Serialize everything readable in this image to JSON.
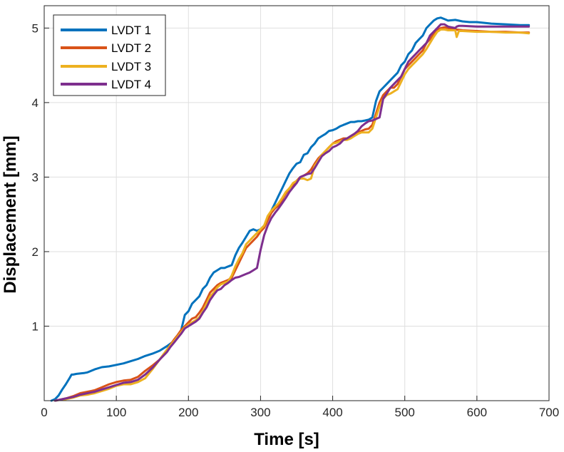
{
  "chart_data": {
    "type": "line",
    "xlabel": "Time [s]",
    "ylabel": "Displacement [mm]",
    "xlim": [
      0,
      700
    ],
    "ylim": [
      0,
      5.3
    ],
    "xticks": [
      0,
      100,
      200,
      300,
      400,
      500,
      600,
      700
    ],
    "xtick_labels": [
      "0",
      "100",
      "200",
      "300",
      "400",
      "500",
      "600",
      "700"
    ],
    "yticks": [
      1,
      2,
      3,
      4,
      5
    ],
    "ytick_labels": [
      "1",
      "2",
      "3",
      "4",
      "5"
    ],
    "grid": true,
    "legend_position": "top-left",
    "series": [
      {
        "name": "LVDT 1",
        "color": "#0072BD",
        "x": [
          10,
          15,
          20,
          25,
          30,
          35,
          38,
          40,
          45,
          55,
          60,
          70,
          80,
          90,
          100,
          110,
          120,
          130,
          140,
          150,
          160,
          170,
          180,
          185,
          190,
          195,
          200,
          205,
          210,
          215,
          220,
          225,
          230,
          235,
          240,
          245,
          250,
          255,
          260,
          265,
          270,
          275,
          280,
          285,
          290,
          295,
          300,
          305,
          310,
          315,
          320,
          325,
          330,
          335,
          340,
          345,
          350,
          355,
          360,
          365,
          370,
          375,
          380,
          385,
          390,
          395,
          400,
          405,
          410,
          415,
          420,
          425,
          430,
          435,
          440,
          445,
          450,
          455,
          460,
          465,
          470,
          475,
          480,
          485,
          490,
          495,
          500,
          505,
          510,
          515,
          520,
          525,
          530,
          535,
          540,
          545,
          550,
          555,
          560,
          570,
          580,
          590,
          600,
          620,
          640,
          660,
          672
        ],
        "values": [
          0.0,
          0.02,
          0.07,
          0.15,
          0.22,
          0.3,
          0.35,
          0.35,
          0.36,
          0.37,
          0.38,
          0.42,
          0.45,
          0.46,
          0.48,
          0.5,
          0.53,
          0.56,
          0.6,
          0.63,
          0.67,
          0.73,
          0.8,
          0.85,
          0.95,
          1.15,
          1.2,
          1.3,
          1.35,
          1.4,
          1.5,
          1.55,
          1.65,
          1.72,
          1.75,
          1.78,
          1.78,
          1.8,
          1.82,
          1.95,
          2.05,
          2.12,
          2.2,
          2.28,
          2.3,
          2.28,
          2.3,
          2.35,
          2.45,
          2.55,
          2.65,
          2.75,
          2.85,
          2.95,
          3.05,
          3.12,
          3.18,
          3.2,
          3.3,
          3.32,
          3.4,
          3.45,
          3.52,
          3.55,
          3.58,
          3.62,
          3.63,
          3.65,
          3.68,
          3.7,
          3.72,
          3.74,
          3.74,
          3.75,
          3.75,
          3.76,
          3.77,
          3.8,
          4.02,
          4.15,
          4.2,
          4.25,
          4.3,
          4.35,
          4.4,
          4.5,
          4.55,
          4.65,
          4.7,
          4.8,
          4.85,
          4.9,
          5.0,
          5.05,
          5.1,
          5.13,
          5.14,
          5.12,
          5.1,
          5.11,
          5.09,
          5.08,
          5.08,
          5.06,
          5.05,
          5.04,
          5.04
        ]
      },
      {
        "name": "LVDT 2",
        "color": "#D95319",
        "x": [
          15,
          20,
          30,
          40,
          50,
          60,
          70,
          80,
          90,
          100,
          110,
          120,
          130,
          140,
          150,
          160,
          170,
          175,
          180,
          185,
          190,
          195,
          200,
          205,
          210,
          215,
          220,
          225,
          230,
          235,
          240,
          245,
          250,
          255,
          260,
          265,
          270,
          275,
          280,
          285,
          290,
          295,
          300,
          305,
          310,
          315,
          320,
          325,
          330,
          335,
          340,
          345,
          350,
          355,
          360,
          365,
          370,
          375,
          380,
          385,
          390,
          395,
          400,
          405,
          410,
          415,
          420,
          425,
          430,
          435,
          440,
          445,
          450,
          455,
          460,
          465,
          470,
          475,
          480,
          485,
          490,
          495,
          500,
          505,
          510,
          515,
          520,
          525,
          530,
          535,
          540,
          545,
          550,
          555,
          560,
          570,
          580,
          600,
          620,
          640,
          660,
          672
        ],
        "values": [
          0.0,
          0.01,
          0.03,
          0.06,
          0.1,
          0.12,
          0.14,
          0.18,
          0.22,
          0.25,
          0.27,
          0.28,
          0.32,
          0.4,
          0.47,
          0.55,
          0.68,
          0.75,
          0.82,
          0.88,
          0.95,
          1.0,
          1.05,
          1.1,
          1.12,
          1.18,
          1.25,
          1.35,
          1.45,
          1.5,
          1.55,
          1.58,
          1.6,
          1.62,
          1.65,
          1.75,
          1.85,
          1.95,
          2.05,
          2.1,
          2.15,
          2.2,
          2.27,
          2.32,
          2.42,
          2.52,
          2.58,
          2.62,
          2.7,
          2.78,
          2.85,
          2.9,
          2.95,
          3.0,
          3.02,
          3.05,
          3.1,
          3.18,
          3.25,
          3.3,
          3.35,
          3.4,
          3.45,
          3.48,
          3.5,
          3.52,
          3.52,
          3.55,
          3.58,
          3.6,
          3.62,
          3.64,
          3.65,
          3.7,
          3.85,
          4.0,
          4.1,
          4.15,
          4.2,
          4.2,
          4.25,
          4.35,
          4.45,
          4.5,
          4.55,
          4.6,
          4.65,
          4.7,
          4.8,
          4.85,
          4.92,
          4.98,
          5.0,
          5.01,
          5.0,
          4.98,
          4.97,
          4.96,
          4.95,
          4.95,
          4.94,
          4.94
        ]
      },
      {
        "name": "LVDT 3",
        "color": "#EDB120",
        "x": [
          15,
          20,
          30,
          40,
          50,
          60,
          70,
          80,
          90,
          100,
          110,
          120,
          130,
          140,
          150,
          160,
          170,
          175,
          180,
          185,
          190,
          195,
          200,
          205,
          210,
          215,
          220,
          225,
          230,
          235,
          240,
          245,
          250,
          255,
          260,
          265,
          270,
          275,
          280,
          285,
          290,
          295,
          300,
          305,
          310,
          315,
          320,
          325,
          330,
          335,
          340,
          345,
          350,
          355,
          360,
          365,
          370,
          375,
          380,
          385,
          390,
          395,
          400,
          405,
          410,
          415,
          420,
          425,
          430,
          435,
          440,
          445,
          450,
          455,
          460,
          465,
          470,
          475,
          480,
          485,
          490,
          495,
          500,
          505,
          510,
          515,
          520,
          525,
          530,
          535,
          540,
          545,
          550,
          555,
          560,
          565,
          570,
          572,
          575,
          580,
          600,
          620,
          640,
          660,
          672
        ],
        "values": [
          0.0,
          0.01,
          0.02,
          0.04,
          0.07,
          0.08,
          0.1,
          0.13,
          0.16,
          0.2,
          0.22,
          0.22,
          0.25,
          0.3,
          0.42,
          0.55,
          0.68,
          0.74,
          0.8,
          0.86,
          0.92,
          0.98,
          1.02,
          1.05,
          1.08,
          1.12,
          1.2,
          1.3,
          1.4,
          1.45,
          1.52,
          1.56,
          1.58,
          1.6,
          1.68,
          1.8,
          1.9,
          1.98,
          2.1,
          2.15,
          2.2,
          2.25,
          2.3,
          2.35,
          2.48,
          2.55,
          2.6,
          2.65,
          2.72,
          2.8,
          2.85,
          2.92,
          2.95,
          2.98,
          2.98,
          2.96,
          2.98,
          3.15,
          3.22,
          3.3,
          3.35,
          3.4,
          3.45,
          3.46,
          3.48,
          3.5,
          3.5,
          3.52,
          3.55,
          3.58,
          3.6,
          3.6,
          3.6,
          3.65,
          3.8,
          3.95,
          4.05,
          4.1,
          4.12,
          4.15,
          4.18,
          4.28,
          4.38,
          4.45,
          4.5,
          4.55,
          4.6,
          4.65,
          4.72,
          4.8,
          4.88,
          4.95,
          4.98,
          4.98,
          4.97,
          4.97,
          4.97,
          4.88,
          4.96,
          4.96,
          4.95,
          4.95,
          4.94,
          4.94,
          4.93
        ]
      },
      {
        "name": "LVDT 4",
        "color": "#7E2F8E",
        "x": [
          15,
          20,
          30,
          40,
          50,
          60,
          70,
          80,
          90,
          100,
          110,
          120,
          130,
          140,
          150,
          160,
          170,
          175,
          180,
          185,
          190,
          195,
          200,
          205,
          210,
          215,
          220,
          225,
          230,
          235,
          240,
          245,
          250,
          255,
          260,
          265,
          270,
          275,
          280,
          285,
          290,
          295,
          300,
          305,
          310,
          315,
          320,
          325,
          330,
          335,
          340,
          345,
          350,
          355,
          360,
          365,
          370,
          375,
          380,
          385,
          390,
          395,
          400,
          405,
          410,
          415,
          420,
          425,
          430,
          435,
          440,
          445,
          450,
          455,
          460,
          465,
          470,
          475,
          480,
          485,
          490,
          495,
          500,
          505,
          510,
          515,
          520,
          525,
          530,
          535,
          540,
          545,
          550,
          555,
          560,
          570,
          572,
          575,
          580,
          600,
          620,
          640,
          660,
          672
        ],
        "values": [
          0.0,
          0.01,
          0.03,
          0.05,
          0.08,
          0.1,
          0.12,
          0.15,
          0.18,
          0.21,
          0.24,
          0.25,
          0.28,
          0.35,
          0.44,
          0.55,
          0.65,
          0.72,
          0.78,
          0.84,
          0.9,
          0.97,
          1.0,
          1.03,
          1.06,
          1.1,
          1.18,
          1.25,
          1.35,
          1.42,
          1.48,
          1.5,
          1.55,
          1.58,
          1.62,
          1.65,
          1.66,
          1.68,
          1.7,
          1.72,
          1.75,
          1.78,
          2.02,
          2.22,
          2.35,
          2.45,
          2.52,
          2.58,
          2.65,
          2.72,
          2.8,
          2.86,
          2.92,
          3.0,
          3.02,
          3.04,
          3.05,
          3.12,
          3.2,
          3.28,
          3.32,
          3.35,
          3.4,
          3.42,
          3.45,
          3.5,
          3.52,
          3.55,
          3.58,
          3.62,
          3.68,
          3.72,
          3.75,
          3.76,
          3.78,
          3.8,
          4.05,
          4.12,
          4.2,
          4.25,
          4.3,
          4.35,
          4.45,
          4.55,
          4.6,
          4.65,
          4.7,
          4.75,
          4.8,
          4.9,
          4.95,
          5.0,
          5.05,
          5.05,
          5.02,
          5.0,
          5.02,
          5.03,
          5.03,
          5.02,
          5.02,
          5.02,
          5.02,
          5.02
        ]
      }
    ]
  }
}
